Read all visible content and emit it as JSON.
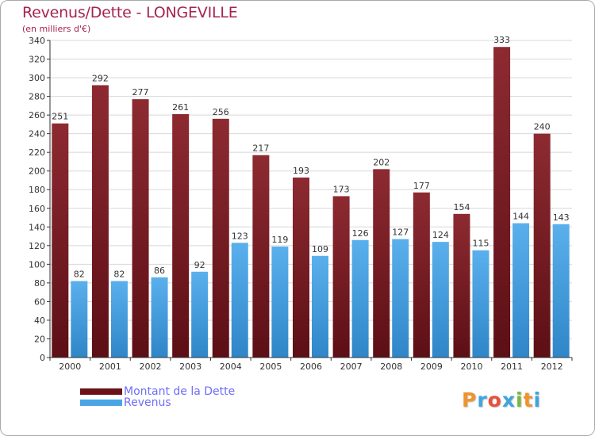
{
  "title": "Revenus/Dette - LONGEVILLE",
  "subtitle": "(en milliers d'€)",
  "logo": {
    "text": "Proxiti",
    "colors": [
      "#f0932b",
      "#3da5e0",
      "#e8503a",
      "#3da5e0",
      "#7ab83b",
      "#f0932b",
      "#3da5e0"
    ]
  },
  "colors": {
    "dette": "#7a1c23",
    "revenus": "#4aa5e6",
    "axis": "#333333",
    "grid": "#d8d8d8",
    "title": "#a6244f",
    "legend_text": "#6d6dfa"
  },
  "chart_data": {
    "type": "bar",
    "categories": [
      "2000",
      "2001",
      "2002",
      "2003",
      "2004",
      "2005",
      "2006",
      "2007",
      "2008",
      "2009",
      "2010",
      "2011",
      "2012"
    ],
    "series": [
      {
        "name": "Montant de la Dette",
        "values": [
          251,
          292,
          277,
          261,
          256,
          217,
          193,
          173,
          202,
          177,
          154,
          333,
          240
        ]
      },
      {
        "name": "Revenus",
        "values": [
          82,
          82,
          86,
          92,
          123,
          119,
          109,
          126,
          127,
          124,
          115,
          144,
          143
        ]
      }
    ],
    "ylim": [
      0,
      340
    ],
    "yticks": [
      0,
      20,
      40,
      60,
      80,
      100,
      120,
      140,
      160,
      180,
      200,
      220,
      240,
      260,
      280,
      300,
      320,
      340
    ],
    "grid": true,
    "legend_position": "bottom-left"
  }
}
